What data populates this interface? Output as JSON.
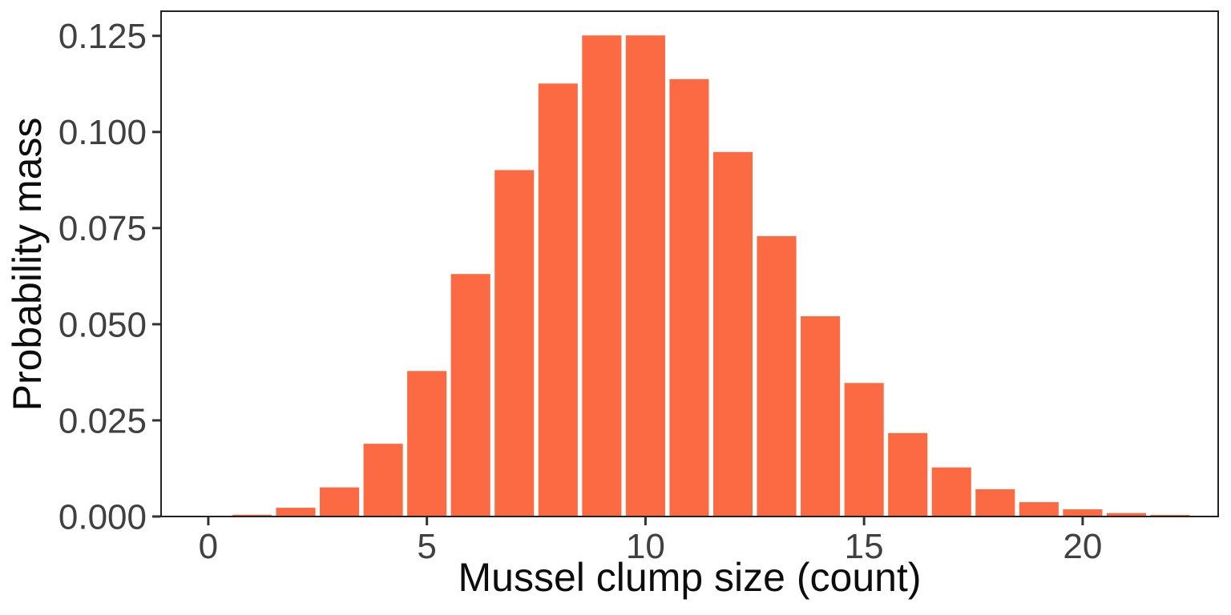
{
  "chart_data": {
    "type": "bar",
    "title": "",
    "xlabel": "Mussel clump size (count)",
    "ylabel": "Probability mass",
    "x": [
      0,
      1,
      2,
      3,
      4,
      5,
      6,
      7,
      8,
      9,
      10,
      11,
      12,
      13,
      14,
      15,
      16,
      17,
      18,
      19,
      20,
      21,
      22
    ],
    "values": [
      4.54e-05,
      0.000454,
      0.00227,
      0.007567,
      0.018917,
      0.037833,
      0.063055,
      0.090079,
      0.112599,
      0.12511,
      0.12511,
      0.113736,
      0.09478,
      0.072908,
      0.052077,
      0.034718,
      0.021699,
      0.012764,
      0.007091,
      0.003732,
      0.001866,
      0.000889,
      0.000404
    ],
    "distribution_note": "Poisson pmf, mean 10",
    "bar_width_units": 0.9,
    "xlim": [
      -1.08,
      23.1
    ],
    "ylim": [
      0,
      0.1314
    ],
    "x_ticks": [
      0,
      5,
      10,
      15,
      20
    ],
    "x_tick_labels": [
      "0",
      "5",
      "10",
      "15",
      "20"
    ],
    "y_ticks": [
      0,
      0.025,
      0.05,
      0.075,
      0.1,
      0.125
    ],
    "y_tick_labels": [
      "0.000",
      "0.025",
      "0.050",
      "0.075",
      "0.100",
      "0.125"
    ],
    "grid": false,
    "legend": "none",
    "colors": {
      "bar_fill": "#fb6a42",
      "panel_border": "#222222",
      "tick_mark": "#333333",
      "tick_label": "#404040",
      "axis_title": "#0d0d0d",
      "background": "#ffffff"
    }
  }
}
